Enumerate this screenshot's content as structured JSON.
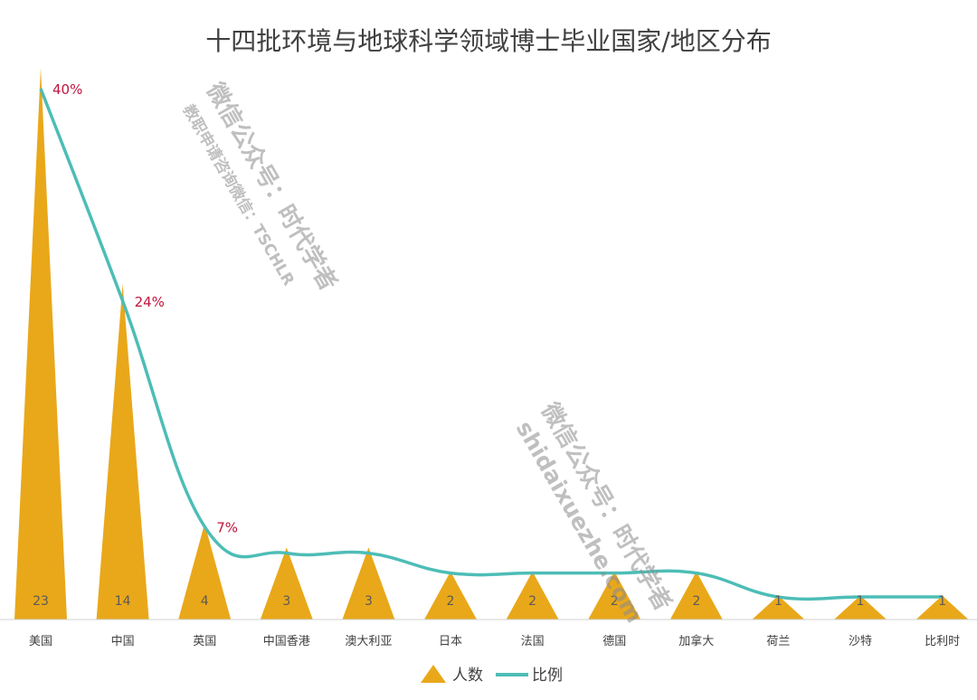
{
  "chart_data": {
    "type": "bar",
    "title": "十四批环境与地球科学领域博士毕业国家/地区分布",
    "categories": [
      "美国",
      "中国",
      "英国",
      "中国香港",
      "澳大利亚",
      "日本",
      "法国",
      "德国",
      "加拿大",
      "荷兰",
      "沙特",
      "比利时"
    ],
    "series": [
      {
        "name": "人数",
        "type": "triangle-bar",
        "color": "#E9A81A",
        "values": [
          23,
          14,
          4,
          3,
          3,
          2,
          2,
          2,
          2,
          1,
          1,
          1
        ],
        "value_labels": [
          "23",
          "14",
          "4",
          "3",
          "3",
          "2",
          "2",
          "2",
          "2",
          "1",
          "1",
          "1"
        ]
      },
      {
        "name": "比例",
        "type": "line",
        "color": "#4DBDB6",
        "values": [
          40,
          24,
          7,
          5,
          5,
          3.5,
          3.5,
          3.5,
          3.5,
          1.7,
          1.7,
          1.7
        ],
        "point_labels": [
          "40%",
          "24%",
          "7%",
          "",
          "",
          "",
          "",
          "",
          "",
          "",
          "",
          ""
        ],
        "label_color": "#C0143C"
      }
    ],
    "ylim": [
      0,
      23
    ],
    "grid": false,
    "legend_position": "bottom"
  },
  "watermarks": {
    "upper_line1": "微信公众号：时代学者",
    "upper_line2": "教职申请咨询微信：TSCHLR",
    "lower_line1": "微信公众号：时代学者",
    "lower_line2": "shidaixuezhe.com"
  }
}
